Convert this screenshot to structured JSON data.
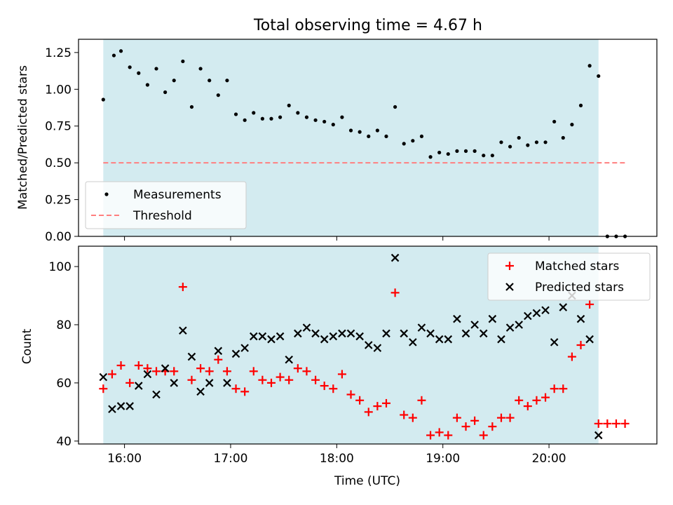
{
  "chart_data": [
    {
      "type": "scatter",
      "title": "Total observing time = 4.67 h",
      "ylabel": "Matched/Predicted stars",
      "xlabel": "",
      "xlim": [
        "15:34",
        "21:01"
      ],
      "ylim": [
        0,
        1.34
      ],
      "yticks": [
        "0.00",
        "0.25",
        "0.50",
        "0.75",
        "1.00",
        "1.25"
      ],
      "grid": false,
      "legend_position": "lower-left",
      "shaded_interval": [
        "15:48",
        "20:28"
      ],
      "shade_color": "#d3ebf0",
      "series": [
        {
          "name": "Measurements",
          "color": "#000000",
          "points": [
            [
              "15:48",
              0.93
            ],
            [
              "15:54",
              1.23
            ],
            [
              "15:58",
              1.26
            ],
            [
              "16:03",
              1.15
            ],
            [
              "16:08",
              1.11
            ],
            [
              "16:13",
              1.03
            ],
            [
              "16:18",
              1.14
            ],
            [
              "16:23",
              0.98
            ],
            [
              "16:28",
              1.06
            ],
            [
              "16:33",
              1.19
            ],
            [
              "16:38",
              0.88
            ],
            [
              "16:43",
              1.14
            ],
            [
              "16:48",
              1.06
            ],
            [
              "16:53",
              0.96
            ],
            [
              "16:58",
              1.06
            ],
            [
              "17:03",
              0.83
            ],
            [
              "17:08",
              0.79
            ],
            [
              "17:13",
              0.84
            ],
            [
              "17:18",
              0.8
            ],
            [
              "17:23",
              0.8
            ],
            [
              "17:28",
              0.81
            ],
            [
              "17:33",
              0.89
            ],
            [
              "17:38",
              0.84
            ],
            [
              "17:43",
              0.81
            ],
            [
              "17:48",
              0.79
            ],
            [
              "17:53",
              0.78
            ],
            [
              "17:58",
              0.76
            ],
            [
              "18:03",
              0.81
            ],
            [
              "18:08",
              0.72
            ],
            [
              "18:13",
              0.71
            ],
            [
              "18:18",
              0.68
            ],
            [
              "18:23",
              0.72
            ],
            [
              "18:28",
              0.68
            ],
            [
              "18:33",
              0.88
            ],
            [
              "18:38",
              0.63
            ],
            [
              "18:43",
              0.65
            ],
            [
              "18:48",
              0.68
            ],
            [
              "18:53",
              0.54
            ],
            [
              "18:58",
              0.57
            ],
            [
              "19:03",
              0.56
            ],
            [
              "19:08",
              0.58
            ],
            [
              "19:13",
              0.58
            ],
            [
              "19:18",
              0.58
            ],
            [
              "19:23",
              0.55
            ],
            [
              "19:28",
              0.55
            ],
            [
              "19:33",
              0.64
            ],
            [
              "19:38",
              0.61
            ],
            [
              "19:43",
              0.67
            ],
            [
              "19:48",
              0.62
            ],
            [
              "19:53",
              0.64
            ],
            [
              "19:58",
              0.64
            ],
            [
              "20:03",
              0.78
            ],
            [
              "20:08",
              0.67
            ],
            [
              "20:13",
              0.76
            ],
            [
              "20:18",
              0.89
            ],
            [
              "20:23",
              1.16
            ],
            [
              "20:28",
              1.09
            ],
            [
              "20:33",
              0.0
            ],
            [
              "20:38",
              0.0
            ],
            [
              "20:43",
              0.0
            ]
          ]
        },
        {
          "name": "Threshold",
          "color": "#ff7f7f",
          "line_style": "dashed",
          "x": [
            "15:48",
            "20:43"
          ],
          "values": [
            0.5,
            0.5
          ]
        }
      ]
    },
    {
      "type": "scatter",
      "title": "",
      "ylabel": "Count",
      "xlabel": "Time (UTC)",
      "xlim": [
        "15:34",
        "21:01"
      ],
      "ylim": [
        39,
        107
      ],
      "yticks": [
        "40",
        "60",
        "80",
        "100"
      ],
      "xticks": [
        "16:00",
        "17:00",
        "18:00",
        "19:00",
        "20:00"
      ],
      "grid": false,
      "legend_position": "upper-right",
      "shaded_interval": [
        "15:48",
        "20:28"
      ],
      "shade_color": "#d3ebf0",
      "series": [
        {
          "name": "Matched stars",
          "color": "#ff0000",
          "marker": "plus",
          "points": [
            [
              "15:48",
              58
            ],
            [
              "15:53",
              63
            ],
            [
              "15:58",
              66
            ],
            [
              "16:03",
              60
            ],
            [
              "16:08",
              66
            ],
            [
              "16:13",
              65
            ],
            [
              "16:18",
              64
            ],
            [
              "16:23",
              64
            ],
            [
              "16:28",
              64
            ],
            [
              "16:33",
              93
            ],
            [
              "16:38",
              61
            ],
            [
              "16:43",
              65
            ],
            [
              "16:48",
              64
            ],
            [
              "16:53",
              68
            ],
            [
              "16:58",
              64
            ],
            [
              "17:03",
              58
            ],
            [
              "17:08",
              57
            ],
            [
              "17:13",
              64
            ],
            [
              "17:18",
              61
            ],
            [
              "17:23",
              60
            ],
            [
              "17:28",
              62
            ],
            [
              "17:33",
              61
            ],
            [
              "17:38",
              65
            ],
            [
              "17:43",
              64
            ],
            [
              "17:48",
              61
            ],
            [
              "17:53",
              59
            ],
            [
              "17:58",
              58
            ],
            [
              "18:03",
              63
            ],
            [
              "18:08",
              56
            ],
            [
              "18:13",
              54
            ],
            [
              "18:18",
              50
            ],
            [
              "18:23",
              52
            ],
            [
              "18:28",
              53
            ],
            [
              "18:33",
              91
            ],
            [
              "18:38",
              49
            ],
            [
              "18:43",
              48
            ],
            [
              "18:48",
              54
            ],
            [
              "18:53",
              42
            ],
            [
              "18:58",
              43
            ],
            [
              "19:03",
              42
            ],
            [
              "19:08",
              48
            ],
            [
              "19:13",
              45
            ],
            [
              "19:18",
              47
            ],
            [
              "19:23",
              42
            ],
            [
              "19:28",
              45
            ],
            [
              "19:33",
              48
            ],
            [
              "19:38",
              48
            ],
            [
              "19:43",
              54
            ],
            [
              "19:48",
              52
            ],
            [
              "19:53",
              54
            ],
            [
              "19:58",
              55
            ],
            [
              "20:03",
              58
            ],
            [
              "20:08",
              58
            ],
            [
              "20:13",
              69
            ],
            [
              "20:18",
              73
            ],
            [
              "20:23",
              87
            ],
            [
              "20:28",
              46
            ],
            [
              "20:33",
              46
            ],
            [
              "20:38",
              46
            ],
            [
              "20:43",
              46
            ]
          ]
        },
        {
          "name": "Predicted stars",
          "color": "#000000",
          "marker": "x",
          "points": [
            [
              "15:48",
              62
            ],
            [
              "15:53",
              51
            ],
            [
              "15:58",
              52
            ],
            [
              "16:03",
              52
            ],
            [
              "16:08",
              59
            ],
            [
              "16:13",
              63
            ],
            [
              "16:18",
              56
            ],
            [
              "16:23",
              65
            ],
            [
              "16:28",
              60
            ],
            [
              "16:33",
              78
            ],
            [
              "16:38",
              69
            ],
            [
              "16:43",
              57
            ],
            [
              "16:48",
              60
            ],
            [
              "16:53",
              71
            ],
            [
              "16:58",
              60
            ],
            [
              "17:03",
              70
            ],
            [
              "17:08",
              72
            ],
            [
              "17:13",
              76
            ],
            [
              "17:18",
              76
            ],
            [
              "17:23",
              75
            ],
            [
              "17:28",
              76
            ],
            [
              "17:33",
              68
            ],
            [
              "17:38",
              77
            ],
            [
              "17:43",
              79
            ],
            [
              "17:48",
              77
            ],
            [
              "17:53",
              75
            ],
            [
              "17:58",
              76
            ],
            [
              "18:03",
              77
            ],
            [
              "18:08",
              77
            ],
            [
              "18:13",
              76
            ],
            [
              "18:18",
              73
            ],
            [
              "18:23",
              72
            ],
            [
              "18:28",
              77
            ],
            [
              "18:33",
              103
            ],
            [
              "18:38",
              77
            ],
            [
              "18:43",
              74
            ],
            [
              "18:48",
              79
            ],
            [
              "18:53",
              77
            ],
            [
              "18:58",
              75
            ],
            [
              "19:03",
              75
            ],
            [
              "19:08",
              82
            ],
            [
              "19:13",
              77
            ],
            [
              "19:18",
              80
            ],
            [
              "19:23",
              77
            ],
            [
              "19:28",
              82
            ],
            [
              "19:33",
              75
            ],
            [
              "19:38",
              79
            ],
            [
              "19:43",
              80
            ],
            [
              "19:48",
              83
            ],
            [
              "19:53",
              84
            ],
            [
              "19:58",
              85
            ],
            [
              "20:03",
              74
            ],
            [
              "20:08",
              86
            ],
            [
              "20:13",
              90
            ],
            [
              "20:18",
              82
            ],
            [
              "20:23",
              75
            ],
            [
              "20:28",
              42
            ]
          ]
        }
      ]
    }
  ]
}
